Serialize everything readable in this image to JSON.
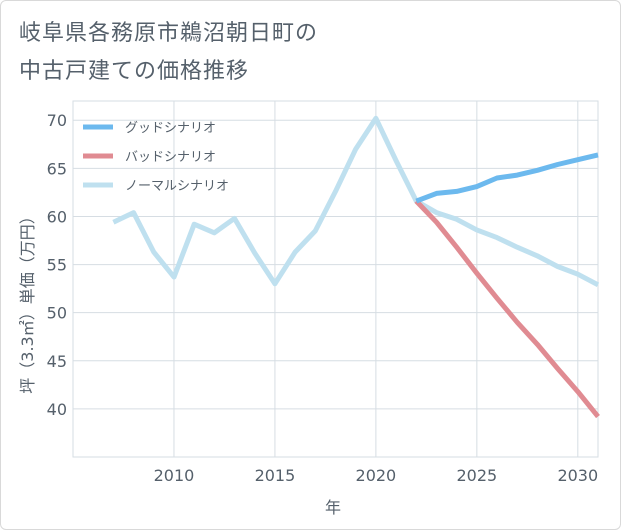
{
  "title_lines": [
    "岐阜県各務原市鵜沼朝日町の",
    "中古戸建ての価格推移"
  ],
  "chart_data": {
    "type": "line",
    "title": "岐阜県各務原市鵜沼朝日町の中古戸建ての価格推移",
    "xlabel": "年",
    "ylabel": "坪（3.3㎡）単価（万円）",
    "xlim": [
      2005,
      2031
    ],
    "ylim": [
      35,
      72
    ],
    "x_ticks": [
      2010,
      2015,
      2020,
      2025,
      2030
    ],
    "y_ticks": [
      40,
      45,
      50,
      55,
      60,
      65,
      70
    ],
    "grid": true,
    "legend_position": "top-left",
    "series": [
      {
        "name": "グッドシナリオ",
        "color": "#6cb9ee",
        "x": [
          2022,
          2023,
          2024,
          2025,
          2026,
          2027,
          2028,
          2029,
          2030,
          2031
        ],
        "y": [
          61.6,
          62.4,
          62.6,
          63.1,
          64.0,
          64.3,
          64.8,
          65.4,
          65.9,
          66.4
        ]
      },
      {
        "name": "バッドシナリオ",
        "color": "#e08b92",
        "x": [
          2022,
          2023,
          2024,
          2025,
          2026,
          2027,
          2028,
          2029,
          2030,
          2031
        ],
        "y": [
          61.6,
          59.4,
          56.8,
          54.1,
          51.5,
          49.0,
          46.7,
          44.2,
          41.8,
          39.2
        ]
      },
      {
        "name": "ノーマルシナリオ",
        "color": "#bfe0ef",
        "x": [
          2007,
          2008,
          2009,
          2010,
          2011,
          2012,
          2013,
          2014,
          2015,
          2016,
          2017,
          2018,
          2019,
          2020,
          2021,
          2022,
          2023,
          2024,
          2025,
          2026,
          2027,
          2028,
          2029,
          2030,
          2031
        ],
        "y": [
          59.4,
          60.4,
          56.3,
          53.7,
          59.2,
          58.3,
          59.8,
          56.2,
          53.0,
          56.3,
          58.5,
          62.6,
          67.0,
          70.2,
          65.8,
          61.6,
          60.4,
          59.7,
          58.6,
          57.8,
          56.8,
          55.9,
          54.8,
          54.0,
          52.9
        ]
      }
    ]
  }
}
